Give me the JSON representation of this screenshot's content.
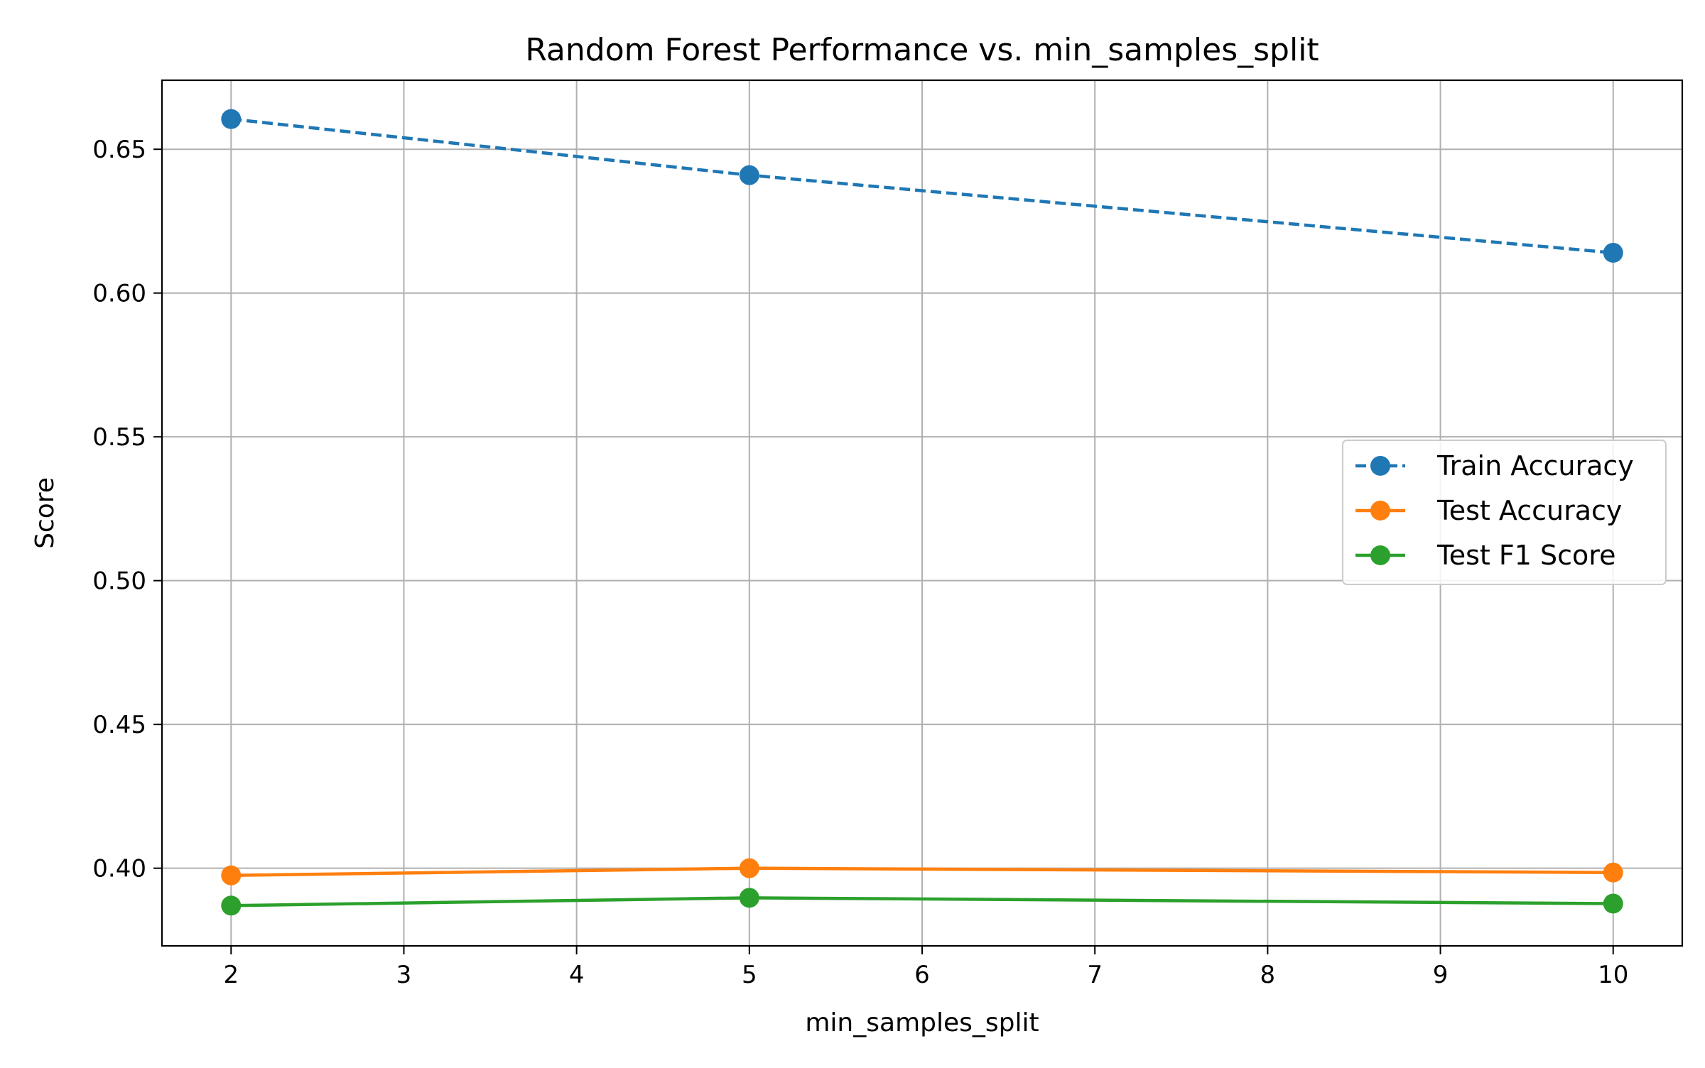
{
  "chart_data": {
    "type": "line",
    "title": "Random Forest Performance vs. min_samples_split",
    "xlabel": "min_samples_split",
    "ylabel": "Score",
    "x": [
      2,
      5,
      10
    ],
    "xlim": [
      1.6,
      10.4
    ],
    "ylim": [
      0.373,
      0.674
    ],
    "xticks": [
      2,
      3,
      4,
      5,
      6,
      7,
      8,
      9,
      10
    ],
    "yticks": [
      0.4,
      0.45,
      0.5,
      0.55,
      0.6,
      0.65
    ],
    "ytick_labels": [
      "0.40",
      "0.45",
      "0.50",
      "0.55",
      "0.60",
      "0.65"
    ],
    "grid": true,
    "legend_position": "center-right",
    "series": [
      {
        "name": "Train Accuracy",
        "values": [
          0.6605,
          0.641,
          0.614
        ],
        "color": "#1f77b4",
        "style": "dashed"
      },
      {
        "name": "Test Accuracy",
        "values": [
          0.3975,
          0.4,
          0.3985
        ],
        "color": "#ff7f0e",
        "style": "solid"
      },
      {
        "name": "Test F1 Score",
        "values": [
          0.387,
          0.3897,
          0.3877
        ],
        "color": "#2ca02c",
        "style": "solid"
      }
    ]
  }
}
